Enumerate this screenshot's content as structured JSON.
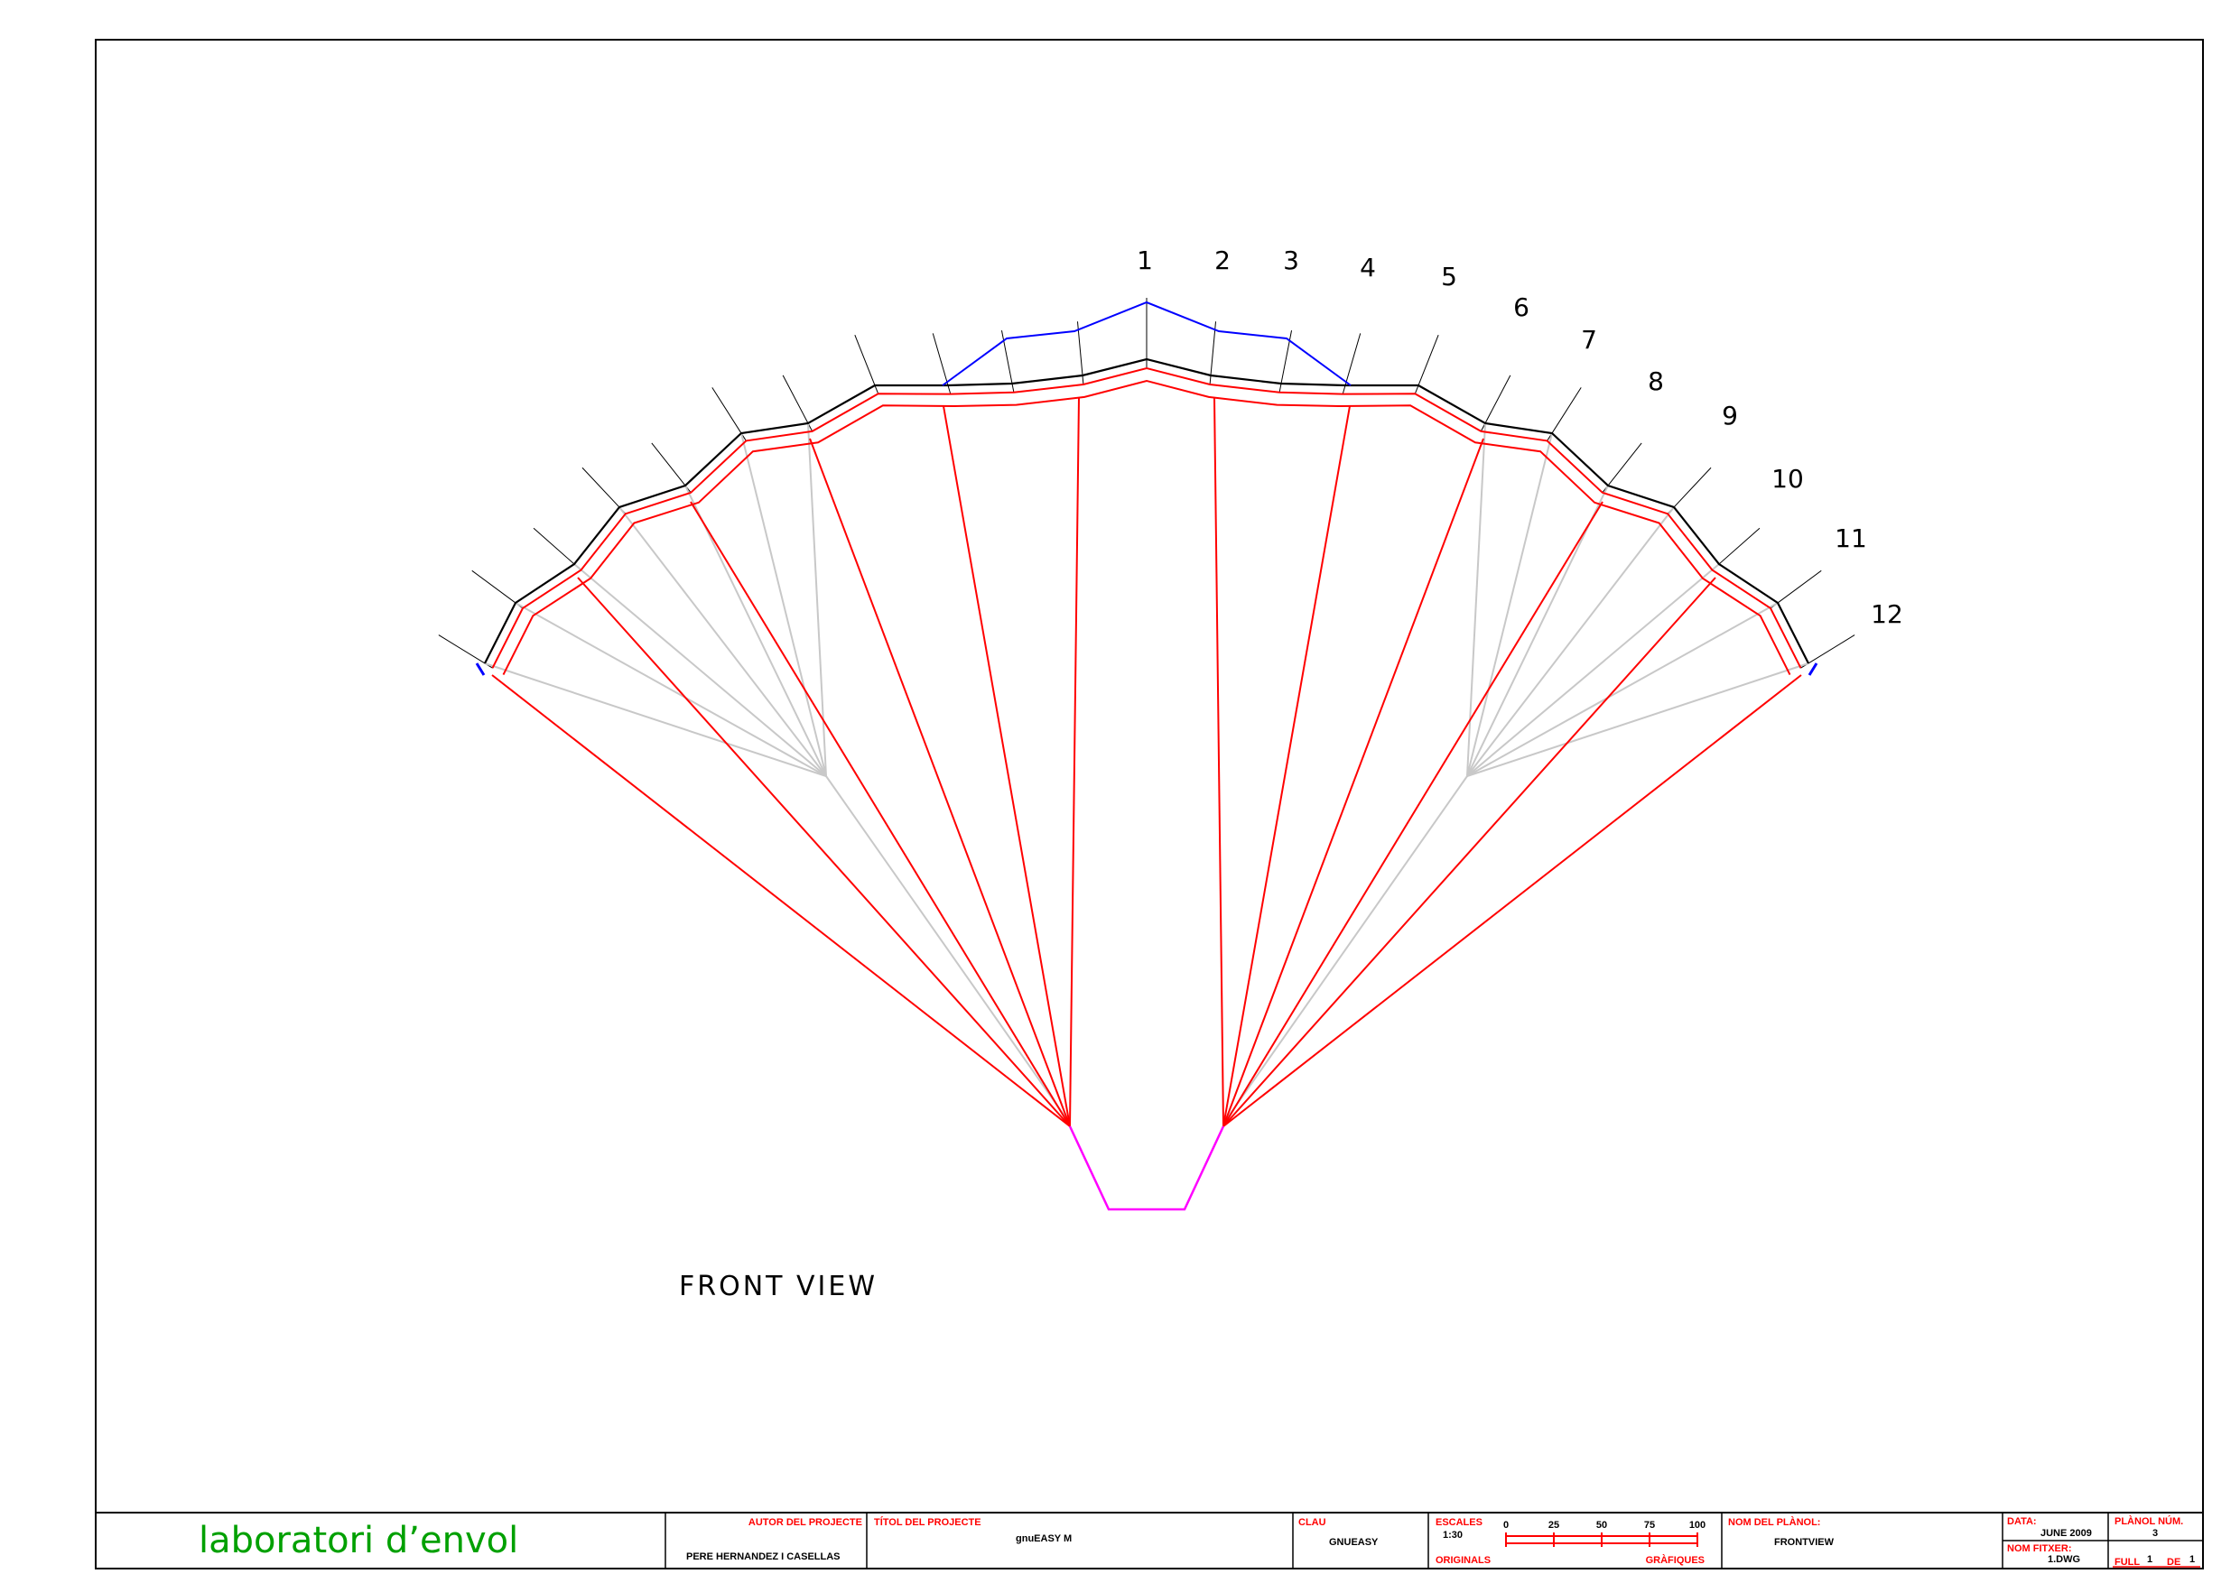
{
  "drawing": {
    "view_title": "FRONT VIEW",
    "rib_labels": [
      "1",
      "2",
      "3",
      "4",
      "5",
      "6",
      "7",
      "8",
      "9",
      "10",
      "11",
      "12"
    ]
  },
  "title_block": {
    "logo_text": "laboratori d’envol",
    "author_header": "AUTOR DEL PROJECTE",
    "author_value": "PERE HERNANDEZ I CASELLAS",
    "project_header": "TÍTOL DEL PROJECTE",
    "project_value": "gnuEASY M",
    "key_header": "CLAU",
    "key_value": "GNUEASY",
    "scales_header": "ESCALES",
    "scale_value": "1:30",
    "originals_label": "ORIGINALS",
    "graphics_label": "GRÀFIQUES",
    "scale_ticks": [
      "0",
      "25",
      "50",
      "75",
      "100"
    ],
    "plan_name_header": "NOM DEL PLÀNOL:",
    "plan_name_value": "FRONTVIEW",
    "date_header": "DATA:",
    "date_value": "JUNE 2009",
    "file_header": "NOM FITXER:",
    "file_value": "1.DWG",
    "plan_num_header": "PLÀNOL NÚM.",
    "plan_num_value": "3",
    "sheet_label": "FULL",
    "sheet_of_label": "DE",
    "sheet_value": "1",
    "sheet_total": "1"
  },
  "colors": {
    "frame": "#000000",
    "lines": "#ff0000",
    "profile": "#0000ff",
    "guides": "#c8c8c8",
    "pilot": "#ff00ff",
    "logo": "#00a000"
  }
}
